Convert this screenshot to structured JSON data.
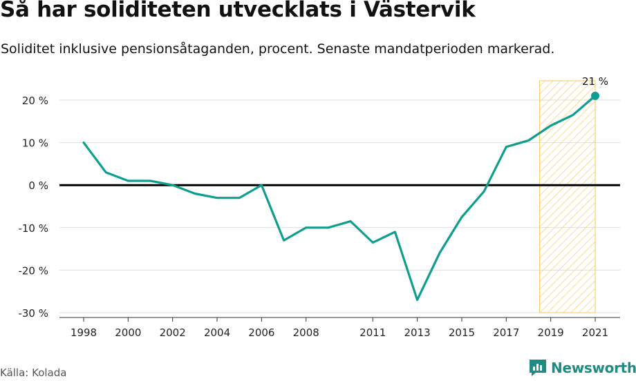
{
  "title": "Så har soliditeten utvecklats i Västervik",
  "subtitle": "Soliditet inklusive pensionsåtaganden, procent. Senaste mandatperioden markerad.",
  "source": "Källa: Kolada",
  "brand": "Newsworthy",
  "colors": {
    "line": "#0d9e8f",
    "highlight_stroke": "#f5c95a",
    "highlight_hatch": "#f7d27a",
    "zero_line": "#000000",
    "grid": "#dddddd",
    "brand": "#1f8c83"
  },
  "chart_data": {
    "type": "line",
    "x": [
      1998,
      1999,
      2000,
      2001,
      2002,
      2003,
      2004,
      2005,
      2006,
      2007,
      2008,
      2009,
      2010,
      2011,
      2012,
      2013,
      2014,
      2015,
      2016,
      2017,
      2018,
      2019,
      2020,
      2021
    ],
    "values": [
      10,
      3,
      1,
      1,
      0,
      -2,
      -3,
      -3,
      0,
      -13,
      -10,
      -10,
      -8.5,
      -13.5,
      -11,
      -27,
      -16,
      -7.5,
      -1.5,
      9,
      10.5,
      14,
      16.5,
      21
    ],
    "ylim": [
      -30,
      20
    ],
    "xlim": [
      1998,
      2021
    ],
    "yticks": [
      20,
      10,
      0,
      -10,
      -20,
      -30
    ],
    "ytick_labels": [
      "20 %",
      "10 %",
      "0 %",
      "-10 %",
      "-20 %",
      "-30 %"
    ],
    "xticks": [
      1998,
      2000,
      2002,
      2004,
      2006,
      2008,
      2011,
      2013,
      2015,
      2017,
      2019,
      2021
    ],
    "xtick_labels": [
      "1998",
      "2000",
      "2002",
      "2004",
      "2006",
      "2008",
      "2011",
      "2013",
      "2015",
      "2017",
      "2019",
      "2021"
    ],
    "highlight_range": [
      2018.5,
      2021
    ],
    "highlight_label": "Senaste mandatperioden",
    "end_label": "21 %",
    "grid": true,
    "reference_line": 0
  }
}
